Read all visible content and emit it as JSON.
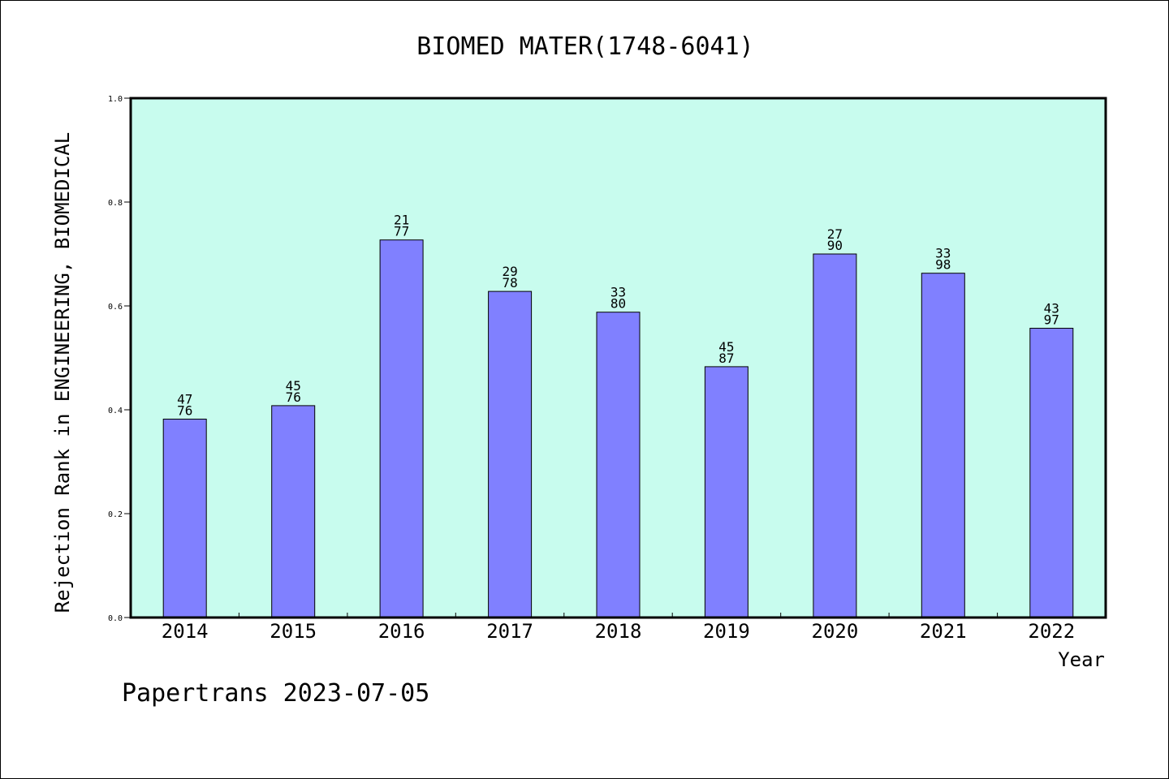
{
  "chart_data": {
    "type": "bar",
    "title": "BIOMED MATER(1748-6041)",
    "xlabel": "Year",
    "ylabel": "Rejection Rank in ENGINEERING, BIOMEDICAL",
    "ylim": [
      0.0,
      1.0
    ],
    "yticks": [
      "0.0",
      "0.2",
      "0.4",
      "0.6",
      "0.8",
      "1.0"
    ],
    "categories": [
      "2014",
      "2015",
      "2016",
      "2017",
      "2018",
      "2019",
      "2020",
      "2021",
      "2022"
    ],
    "values": [
      0.382,
      0.408,
      0.727,
      0.628,
      0.588,
      0.483,
      0.7,
      0.663,
      0.557
    ],
    "rank_labels": [
      "47",
      "45",
      "21",
      "29",
      "33",
      "45",
      "27",
      "33",
      "43"
    ],
    "total_labels": [
      "76",
      "76",
      "77",
      "78",
      "80",
      "87",
      "90",
      "98",
      "97"
    ],
    "grid": false,
    "legend": "none",
    "colors": {
      "plot_background": "#c8fcee",
      "bar_fill": "#8080ff",
      "bar_stroke": "#000000",
      "axis": "#000000"
    }
  },
  "footer": "Papertrans 2023-07-05"
}
